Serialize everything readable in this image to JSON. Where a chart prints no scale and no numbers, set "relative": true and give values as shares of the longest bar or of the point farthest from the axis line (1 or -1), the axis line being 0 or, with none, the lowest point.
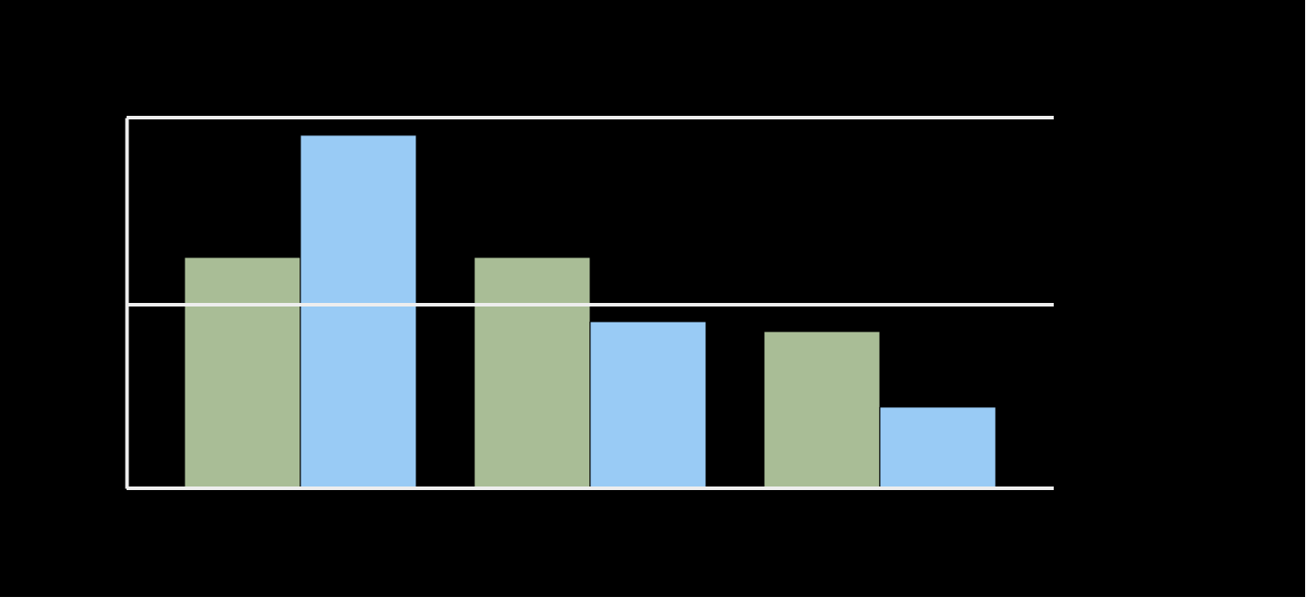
{
  "chart_data": {
    "type": "bar",
    "relative": true,
    "categories": [
      null,
      null,
      null
    ],
    "series": [
      {
        "color": "#a9bd96",
        "values": [
          0.654,
          0.654,
          0.444
        ]
      },
      {
        "color": "#99cbf5",
        "values": [
          1,
          0.472,
          0.23
        ]
      }
    ],
    "ref_lines": [
      {
        "axis": "y",
        "value": 0.52,
        "color": "#eeeeee"
      },
      {
        "axis": "y",
        "value": 1.05,
        "color": "#eeeeee"
      }
    ]
  }
}
